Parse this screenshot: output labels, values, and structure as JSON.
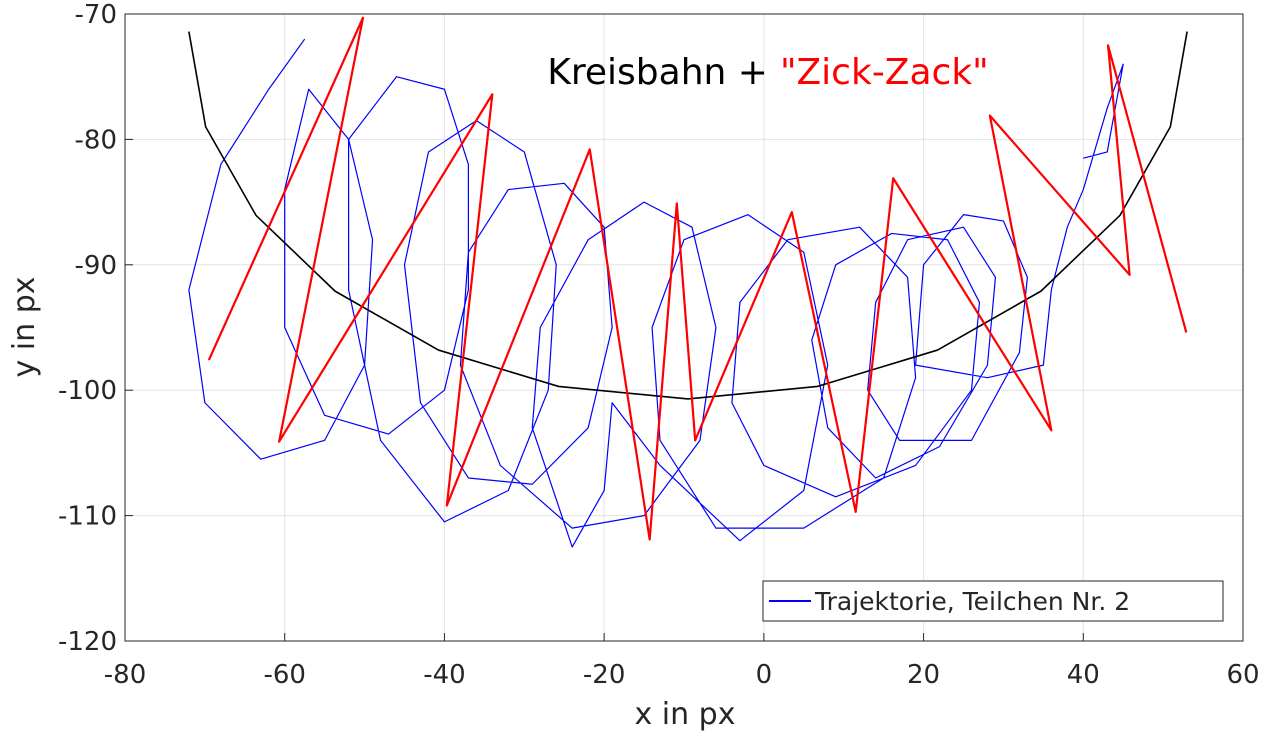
{
  "chart_data": {
    "type": "line",
    "title_parts": [
      {
        "text": "Kreisbahn +",
        "color": "#000000"
      },
      {
        "text": "\"Zick-Zack\"",
        "color": "#ff0000"
      }
    ],
    "xlabel": "x in px",
    "ylabel": "y in px",
    "xlim": [
      -80,
      60
    ],
    "xticks": [
      -80,
      -60,
      -40,
      -20,
      0,
      20,
      40,
      60
    ],
    "ylim": [
      -120,
      -70
    ],
    "yticks": [
      -120,
      -110,
      -100,
      -90,
      -80,
      -70
    ],
    "grid": true,
    "legend": "lower right",
    "series": [
      {
        "name": "Trajektorie, Teilchen Nr. 2",
        "color": "#0000ff",
        "width": 1.2,
        "x": [
          -57.5,
          -62,
          -68,
          -72,
          -70,
          -63,
          -55,
          -50,
          -49,
          -52,
          -57,
          -60,
          -60,
          -55,
          -47,
          -40,
          -37,
          -37,
          -40,
          -46,
          -52,
          -52,
          -48,
          -40,
          -32,
          -27,
          -26,
          -30,
          -36,
          -42,
          -45,
          -43,
          -37,
          -29,
          -22,
          -19,
          -20,
          -25,
          -32,
          -37,
          -38,
          -33,
          -24,
          -15,
          -8,
          -6,
          -9,
          -15,
          -22,
          -28,
          -29,
          -24,
          -20,
          -19,
          -13,
          -3,
          5,
          8,
          5,
          -2,
          -10,
          -14,
          -13,
          -6,
          5,
          15,
          19,
          18,
          12,
          3,
          -3,
          -4,
          0,
          9,
          19,
          26,
          27,
          23,
          16,
          9,
          6,
          8,
          14,
          22,
          28,
          29,
          25,
          18,
          14,
          13,
          17,
          26,
          32,
          33,
          30,
          25,
          20,
          19,
          28,
          35,
          36,
          38,
          40,
          43,
          45,
          43,
          40
        ],
        "values": [
          -72,
          -76,
          -82,
          -92,
          -101,
          -105.5,
          -104,
          -98,
          -88,
          -80,
          -76,
          -84,
          -95,
          -102,
          -103.5,
          -100,
          -92,
          -82,
          -76,
          -75,
          -80,
          -92,
          -104,
          -110.5,
          -108,
          -100,
          -90,
          -81,
          -78.5,
          -81,
          -90,
          -101,
          -107,
          -107.5,
          -103,
          -95,
          -87,
          -83.5,
          -84,
          -89,
          -98,
          -106,
          -111,
          -110,
          -104,
          -95,
          -87,
          -85,
          -88,
          -95,
          -103,
          -112.5,
          -108,
          -101,
          -106,
          -112,
          -108,
          -98,
          -89,
          -86,
          -88,
          -95,
          -104,
          -111,
          -111,
          -107,
          -99,
          -91,
          -87,
          -88,
          -93,
          -101,
          -106,
          -108.5,
          -106,
          -100,
          -93,
          -88,
          -87.5,
          -90,
          -96,
          -103,
          -107,
          -104.5,
          -98,
          -91,
          -87,
          -88,
          -93,
          -100,
          -104,
          -104,
          -97,
          -91,
          -86.5,
          -86,
          -90,
          -98,
          -99,
          -98,
          -92,
          -87,
          -84,
          -77.5,
          -74,
          -81,
          -81.5
        ]
      },
      {
        "color": "#000000",
        "width": 1.6,
        "x": [
          -72,
          -69.9,
          -63.6,
          -53.7,
          -40.75,
          -25.7,
          -9.5,
          6.7,
          21.75,
          34.7,
          44.6,
          50.9,
          53
        ],
        "values": [
          -71.4,
          -79,
          -86.05,
          -92.1,
          -96.8,
          -99.7,
          -100.7,
          -99.7,
          -96.8,
          -92.1,
          -86.05,
          -79,
          -71.4
        ]
      },
      {
        "color": "#ff0000",
        "width": 2.2,
        "x": [
          -69.5,
          -50.2,
          -60.7,
          -34,
          -39.7,
          -21.8,
          -14.3,
          -10.9,
          -8.6,
          3.5,
          11.5,
          16.2,
          36,
          28.3,
          45.8,
          43.1,
          52.9
        ],
        "values": [
          -97.6,
          -70.3,
          -104.1,
          -76.4,
          -109.2,
          -80.8,
          -111.9,
          -85.1,
          -104,
          -85.8,
          -109.7,
          -83.1,
          -103.2,
          -78.1,
          -90.8,
          -72.5,
          -95.4
        ]
      }
    ]
  }
}
